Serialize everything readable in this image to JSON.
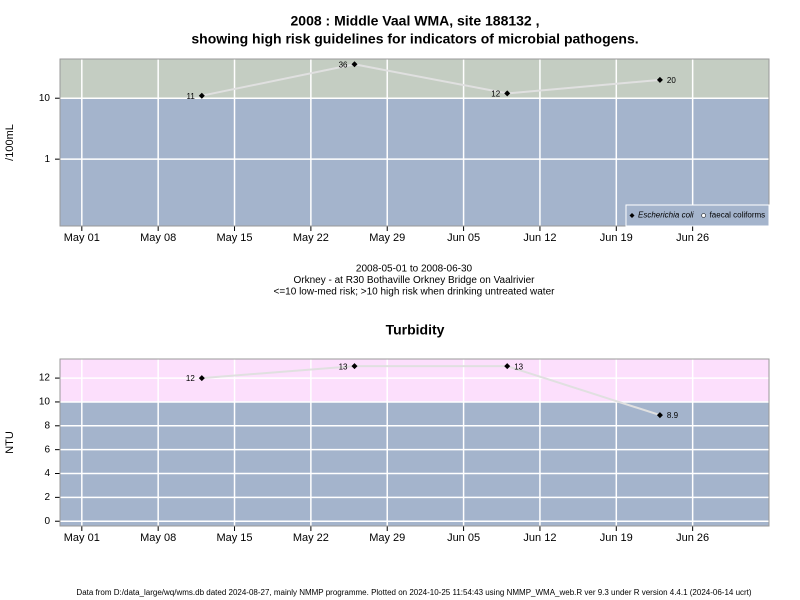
{
  "chart_data": [
    {
      "type": "line",
      "title": [
        "2008 : Middle Vaal WMA, site 188132 ,",
        "showing high risk guidelines for indicators of microbial pathogens."
      ],
      "ylabel": "/100mL",
      "log_y": true,
      "x": [
        "2008-05-12",
        "2008-05-26",
        "2008-06-09",
        "2008-06-23"
      ],
      "series": [
        {
          "name": "Escherichia coli",
          "color": "#000000",
          "values": [
            11,
            36,
            12,
            20
          ]
        },
        {
          "name": "faecal coliforms",
          "color": "#ffffff",
          "values": [
            null,
            null,
            null,
            null
          ]
        }
      ],
      "xlim": [
        "2008-04-29",
        "2008-07-03"
      ],
      "xticks": [
        {
          "value": "2008-05-01",
          "label": "May 01"
        },
        {
          "value": "2008-05-08",
          "label": "May 08"
        },
        {
          "value": "2008-05-15",
          "label": "May 15"
        },
        {
          "value": "2008-05-22",
          "label": "May 22"
        },
        {
          "value": "2008-05-29",
          "label": "May 29"
        },
        {
          "value": "2008-06-05",
          "label": "Jun 05"
        },
        {
          "value": "2008-06-12",
          "label": "Jun 12"
        },
        {
          "value": "2008-06-19",
          "label": "Jun 19"
        },
        {
          "value": "2008-06-26",
          "label": "Jun 26"
        }
      ],
      "ylim": [
        0.08,
        44
      ],
      "yticks": [
        1,
        10
      ],
      "guideline": 10,
      "guideline_color": "#c4cdc2",
      "background_color": "#a4b4cc",
      "line_color": "#e0e0e0",
      "grid": true,
      "legend": "bottom-right",
      "subtitle": [
        "2008-05-01 to 2008-06-30",
        "Orkney - at R30 Bothaville Orkney Bridge on Vaalrivier",
        "<=10 low-med risk; >10 high risk when drinking untreated water"
      ]
    },
    {
      "type": "line",
      "title": [
        "Turbidity"
      ],
      "ylabel": "NTU",
      "log_y": false,
      "x": [
        "2008-05-12",
        "2008-05-26",
        "2008-06-09",
        "2008-06-23"
      ],
      "series": [
        {
          "name": "Turbidity",
          "color": "#000000",
          "values": [
            12,
            13,
            13,
            8.9
          ]
        }
      ],
      "xlim": [
        "2008-04-29",
        "2008-07-03"
      ],
      "xticks": [
        {
          "value": "2008-05-01",
          "label": "May 01"
        },
        {
          "value": "2008-05-08",
          "label": "May 08"
        },
        {
          "value": "2008-05-15",
          "label": "May 15"
        },
        {
          "value": "2008-05-22",
          "label": "May 22"
        },
        {
          "value": "2008-05-29",
          "label": "May 29"
        },
        {
          "value": "2008-06-05",
          "label": "Jun 05"
        },
        {
          "value": "2008-06-12",
          "label": "Jun 12"
        },
        {
          "value": "2008-06-19",
          "label": "Jun 19"
        },
        {
          "value": "2008-06-26",
          "label": "Jun 26"
        }
      ],
      "ylim": [
        -0.4,
        13.6
      ],
      "yticks": [
        0,
        2,
        4,
        6,
        8,
        10,
        12
      ],
      "guideline": 10,
      "guideline_color": "#fcdffc",
      "background_color": "#a4b4cc",
      "line_color": "#e0e0e0",
      "grid": true
    }
  ],
  "footer": "Data from D:/data_large/wq/wms.db dated 2024-08-27, mainly NMMP programme. Plotted on 2024-10-25 11:54:43 using NMMP_WMA_web.R ver 9.3 under R version 4.4.1 (2024-06-14 ucrt)"
}
